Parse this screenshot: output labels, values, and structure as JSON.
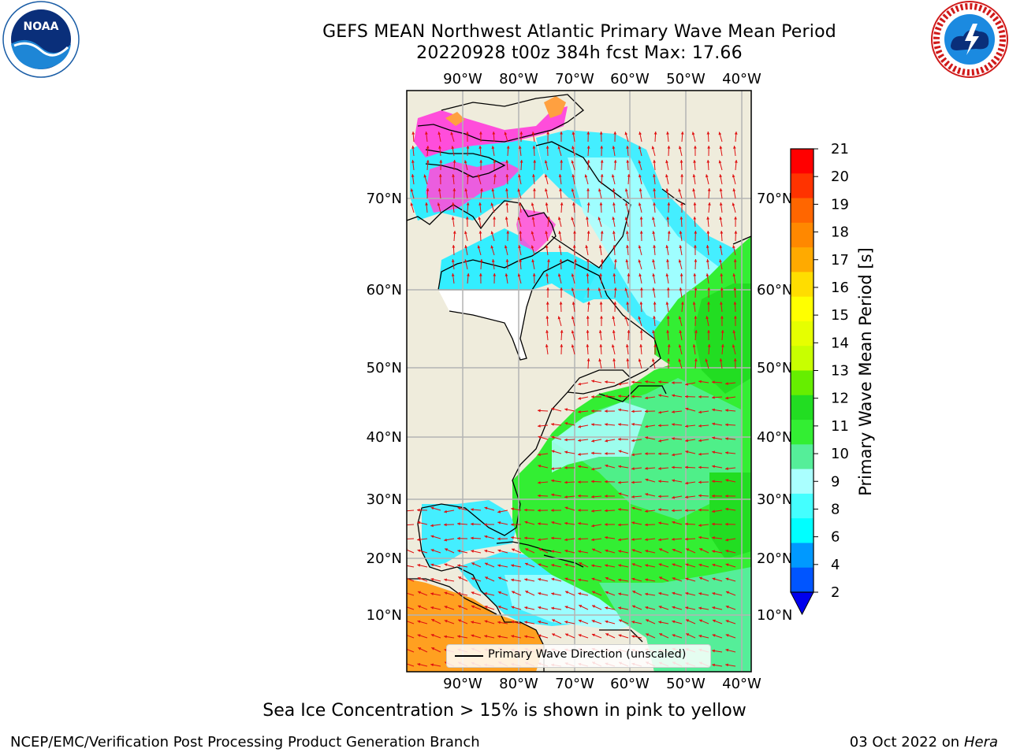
{
  "header": {
    "title_line1": "GEFS MEAN Northwest Atlantic Primary Wave Mean Period",
    "title_line2": "20220928 t00z 384h fcst   Max: 17.66"
  },
  "logos": {
    "left": {
      "name": "NOARA logo",
      "text": "NOAA",
      "ring_text": "NATIONAL OCEANIC AND ATMOSPHERIC ADMINISTRATION • U.S. DEPARTMENT OF COMMERCE"
    },
    "right": {
      "name": "National Weather Service logo",
      "ring_text": "NATIONAL WEATHER SERVICE"
    }
  },
  "map": {
    "lon_labels": [
      "90°W",
      "80°W",
      "70°W",
      "60°W",
      "50°W",
      "40°W"
    ],
    "lat_labels": [
      "70°N",
      "60°N",
      "50°N",
      "40°N",
      "30°N",
      "20°N",
      "10°N"
    ],
    "colors": {
      "land": "#efecdc",
      "coast": "#000000",
      "grid": "#b4b4b4",
      "arrow": "#e01010",
      "ice_pink": "#ff4ddb",
      "ice_orange": "#ffa040"
    }
  },
  "legend": {
    "label": "Primary Wave Direction (unscaled)"
  },
  "colorbar": {
    "label": "Primary Wave Mean Period [s]",
    "ticks": [
      "21",
      "20",
      "19",
      "18",
      "17",
      "16",
      "15",
      "14",
      "13",
      "12",
      "11",
      "10",
      "9",
      "8",
      "6",
      "4",
      "2"
    ],
    "colors": [
      "#ff0000",
      "#ff3300",
      "#ff6600",
      "#ff8800",
      "#ffaa00",
      "#ffdd00",
      "#ffff00",
      "#e6ff00",
      "#c8ff00",
      "#66ee00",
      "#22dd22",
      "#33ee33",
      "#55ee99",
      "#aaffff",
      "#44ffff",
      "#00ffff",
      "#0099ff",
      "#0055ff"
    ],
    "extend_color": "#0000ee"
  },
  "footer": {
    "note": "Sea Ice Concentration > 15% is shown in pink to yellow",
    "left": "NCEP/EMC/Verification Post Processing Product Generation Branch",
    "date": "03 Oct 2022 on",
    "machine": "Hera"
  }
}
